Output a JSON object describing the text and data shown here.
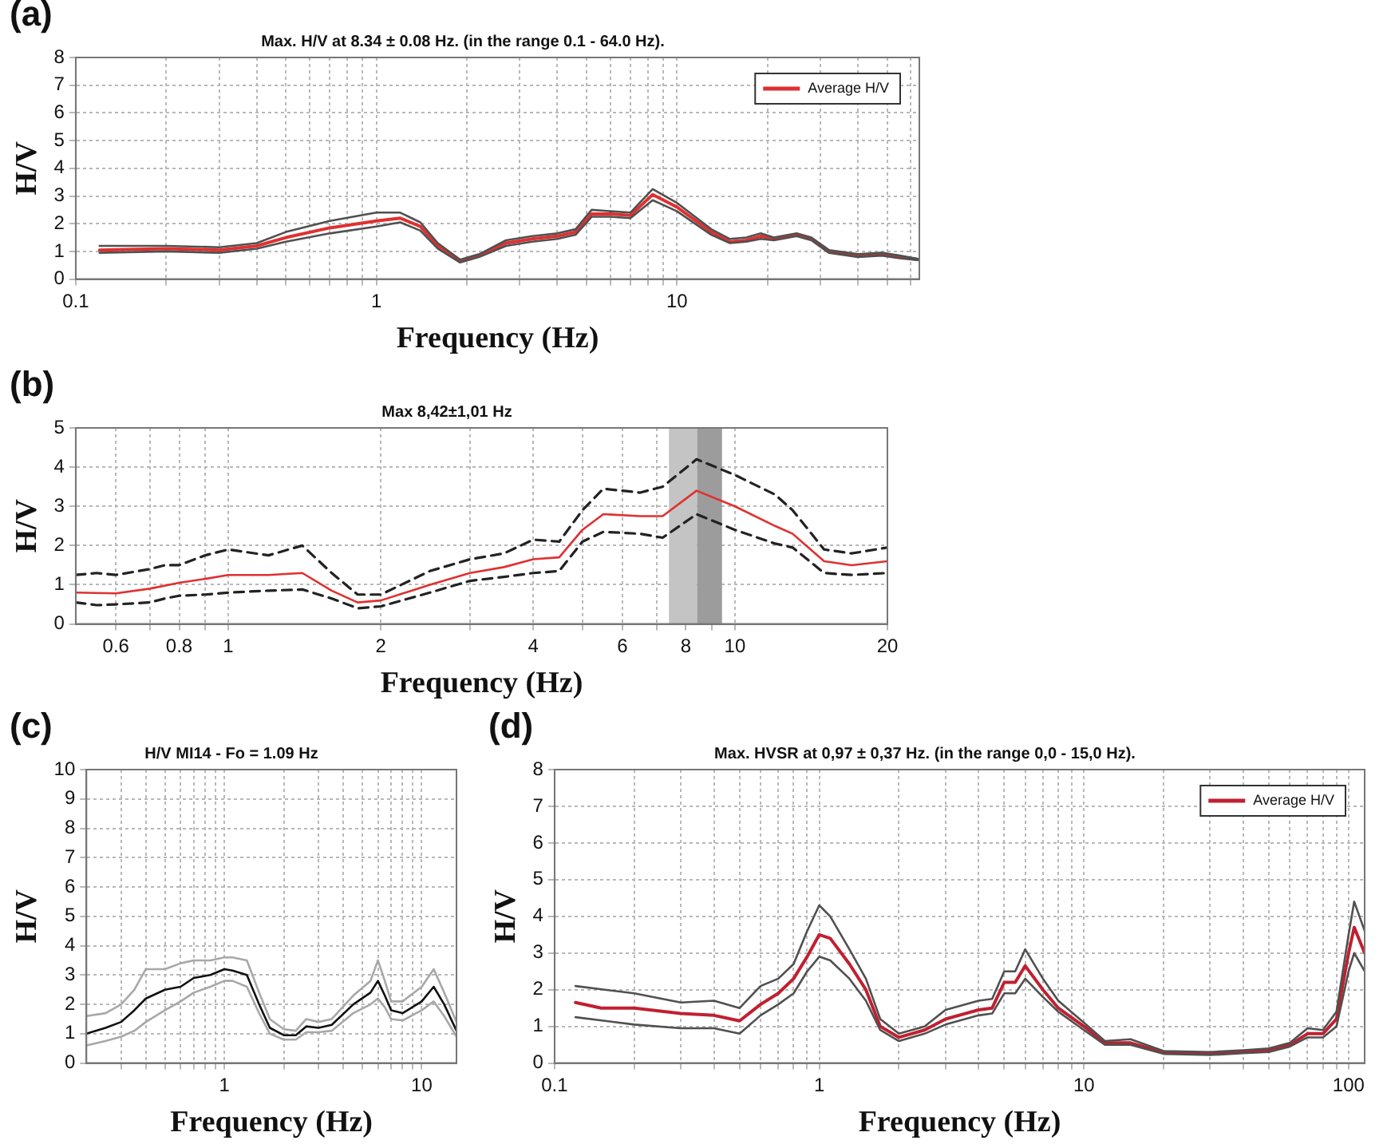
{
  "chart_data": [
    {
      "type": "line",
      "title": "Max. H/V at 8.34 ± 0.08 Hz. (in the range 0.1 - 64.0 Hz).",
      "xlabel": "Frequency (Hz)",
      "ylabel": "H/V",
      "annotations": [
        "(a)"
      ],
      "log": "x",
      "grid": true,
      "legend": "top right",
      "xlim": [
        0.1,
        64
      ],
      "ylim": [
        0,
        8
      ],
      "yticks": [
        0,
        1,
        2,
        3,
        4,
        5,
        6,
        7,
        8
      ],
      "xticks": [
        0.1,
        {
          "value": 0.2,
          "label": null
        },
        {
          "value": 0.3,
          "label": null
        },
        {
          "value": 0.4,
          "label": null
        },
        {
          "value": 0.5,
          "label": null
        },
        {
          "value": 0.6,
          "label": null
        },
        {
          "value": 0.7,
          "label": null
        },
        {
          "value": 0.8,
          "label": null
        },
        {
          "value": 0.9,
          "label": null
        },
        1,
        {
          "value": 2,
          "label": null
        },
        {
          "value": 3,
          "label": null
        },
        {
          "value": 4,
          "label": null
        },
        {
          "value": 5,
          "label": null
        },
        {
          "value": 6,
          "label": null
        },
        {
          "value": 7,
          "label": null
        },
        {
          "value": 8,
          "label": null
        },
        {
          "value": 9,
          "label": null
        },
        10,
        {
          "value": 20,
          "label": null
        },
        {
          "value": 30,
          "label": null
        },
        {
          "value": 40,
          "label": null
        },
        {
          "value": 50,
          "label": null
        },
        {
          "value": 60,
          "label": null
        }
      ],
      "series": [
        {
          "color": "#505050",
          "x": [
            0.12,
            0.2,
            0.3,
            0.4,
            0.5,
            0.7,
            1.0,
            1.2,
            1.4,
            1.6,
            1.9,
            2.2,
            2.7,
            3.3,
            4.0,
            4.6,
            5.2,
            6.0,
            7.0,
            8.3,
            10,
            13,
            15,
            17,
            19,
            21,
            25,
            28,
            32,
            40,
            48,
            55,
            64
          ],
          "values": [
            1.2,
            1.2,
            1.15,
            1.3,
            1.7,
            2.1,
            2.4,
            2.4,
            2.05,
            1.3,
            0.7,
            0.9,
            1.4,
            1.55,
            1.65,
            1.8,
            2.5,
            2.45,
            2.4,
            3.25,
            2.75,
            1.8,
            1.45,
            1.5,
            1.65,
            1.5,
            1.65,
            1.5,
            1.05,
            0.9,
            0.95,
            0.85,
            0.72
          ]
        },
        {
          "color": "#505050",
          "x": [
            0.12,
            0.2,
            0.3,
            0.4,
            0.5,
            0.7,
            1.0,
            1.2,
            1.4,
            1.6,
            1.9,
            2.2,
            2.7,
            3.3,
            4.0,
            4.6,
            5.2,
            6.0,
            7.0,
            8.3,
            10,
            13,
            15,
            17,
            19,
            21,
            25,
            28,
            32,
            40,
            48,
            55,
            64
          ],
          "values": [
            0.95,
            1.0,
            0.95,
            1.1,
            1.35,
            1.65,
            1.9,
            2.05,
            1.75,
            1.1,
            0.6,
            0.8,
            1.2,
            1.35,
            1.45,
            1.6,
            2.25,
            2.25,
            2.2,
            2.85,
            2.45,
            1.6,
            1.3,
            1.35,
            1.45,
            1.4,
            1.55,
            1.4,
            0.95,
            0.8,
            0.85,
            0.75,
            0.68
          ]
        },
        {
          "name": "Average H/V",
          "color": "#e03030",
          "x": [
            0.12,
            0.2,
            0.3,
            0.4,
            0.5,
            0.7,
            1.0,
            1.2,
            1.4,
            1.6,
            1.9,
            2.2,
            2.7,
            3.3,
            4.0,
            4.6,
            5.2,
            6.0,
            7.0,
            8.3,
            10,
            13,
            15,
            17,
            19,
            21,
            25,
            28,
            32,
            40,
            48,
            55,
            64
          ],
          "values": [
            1.05,
            1.1,
            1.05,
            1.2,
            1.5,
            1.85,
            2.1,
            2.2,
            1.9,
            1.2,
            0.65,
            0.85,
            1.3,
            1.45,
            1.55,
            1.7,
            2.35,
            2.35,
            2.3,
            3.05,
            2.6,
            1.7,
            1.35,
            1.4,
            1.55,
            1.45,
            1.6,
            1.45,
            1.0,
            0.85,
            0.9,
            0.8,
            0.7
          ]
        }
      ]
    },
    {
      "type": "line",
      "title": "Max 8,42±1,01 Hz",
      "xlabel": "Frequency (Hz)",
      "ylabel": "H/V",
      "annotations": [
        "(b)"
      ],
      "log": "x",
      "grid": true,
      "xlim": [
        0.5,
        20
      ],
      "ylim": [
        0,
        5
      ],
      "yticks": [
        0,
        1,
        2,
        3,
        4,
        5
      ],
      "xticks": [
        0.6,
        {
          "value": 0.7,
          "label": null
        },
        0.8,
        {
          "value": 0.9,
          "label": null
        },
        1,
        2,
        {
          "value": 3,
          "label": null
        },
        4,
        {
          "value": 5,
          "label": null
        },
        6,
        {
          "value": 7,
          "label": null
        },
        8,
        {
          "value": 9,
          "label": null
        },
        10,
        20
      ],
      "bands": [
        {
          "axis": "x",
          "from": 7.41,
          "to": 8.42,
          "color": "#c4c4c4"
        },
        {
          "axis": "x",
          "from": 8.42,
          "to": 9.43,
          "color": "#9c9c9c"
        }
      ],
      "series": [
        {
          "color": "#222222",
          "line_style": "dashed",
          "x": [
            0.5,
            0.55,
            0.6,
            0.7,
            0.75,
            0.8,
            0.9,
            1.0,
            1.2,
            1.4,
            1.6,
            1.8,
            2.0,
            2.5,
            3,
            3.5,
            4,
            4.5,
            5,
            5.5,
            6.5,
            7.2,
            8.4,
            10,
            12,
            13,
            15,
            17,
            20
          ],
          "values": [
            1.25,
            1.3,
            1.25,
            1.4,
            1.5,
            1.5,
            1.75,
            1.9,
            1.75,
            2.0,
            1.3,
            0.75,
            0.75,
            1.35,
            1.65,
            1.8,
            2.15,
            2.1,
            2.9,
            3.45,
            3.35,
            3.5,
            4.2,
            3.8,
            3.3,
            2.9,
            1.9,
            1.8,
            1.95
          ]
        },
        {
          "color": "#222222",
          "line_style": "dashed",
          "x": [
            0.5,
            0.55,
            0.6,
            0.7,
            0.75,
            0.8,
            0.9,
            1.0,
            1.2,
            1.4,
            1.6,
            1.8,
            2.0,
            2.5,
            3,
            3.5,
            4,
            4.5,
            5,
            5.5,
            6.5,
            7.2,
            8.4,
            10,
            12,
            13,
            15,
            17,
            20
          ],
          "values": [
            0.55,
            0.48,
            0.5,
            0.55,
            0.65,
            0.72,
            0.75,
            0.8,
            0.85,
            0.88,
            0.65,
            0.4,
            0.45,
            0.8,
            1.1,
            1.2,
            1.3,
            1.35,
            2.1,
            2.35,
            2.3,
            2.2,
            2.8,
            2.4,
            2.05,
            1.95,
            1.3,
            1.25,
            1.3
          ]
        },
        {
          "color": "#e03030",
          "x": [
            0.5,
            0.6,
            0.7,
            0.8,
            0.9,
            1.0,
            1.2,
            1.4,
            1.6,
            1.8,
            2.0,
            2.5,
            3,
            3.5,
            4,
            4.5,
            5,
            5.5,
            6.5,
            7.2,
            8.4,
            10,
            12,
            13,
            15,
            17,
            20
          ],
          "values": [
            0.8,
            0.78,
            0.9,
            1.05,
            1.15,
            1.25,
            1.25,
            1.3,
            0.85,
            0.55,
            0.6,
            1.0,
            1.3,
            1.45,
            1.65,
            1.7,
            2.4,
            2.8,
            2.75,
            2.75,
            3.4,
            3.0,
            2.5,
            2.3,
            1.6,
            1.5,
            1.6
          ]
        }
      ]
    },
    {
      "type": "line",
      "title": "H/V MI14 - Fo = 1.09 Hz",
      "xlabel": "Frequency (Hz)",
      "ylabel": "H/V",
      "annotations": [
        "(c)"
      ],
      "log": "x",
      "grid": true,
      "xlim": [
        0.2,
        15
      ],
      "ylim": [
        0,
        10
      ],
      "yticks": [
        0,
        1,
        2,
        3,
        4,
        5,
        6,
        7,
        8,
        9,
        10
      ],
      "xticks": [
        {
          "value": 0.3,
          "label": null
        },
        {
          "value": 0.4,
          "label": null
        },
        {
          "value": 0.5,
          "label": null
        },
        {
          "value": 0.6,
          "label": null
        },
        {
          "value": 0.7,
          "label": null
        },
        {
          "value": 0.8,
          "label": null
        },
        {
          "value": 0.9,
          "label": null
        },
        1,
        {
          "value": 2,
          "label": null
        },
        {
          "value": 3,
          "label": null
        },
        {
          "value": 4,
          "label": null
        },
        {
          "value": 5,
          "label": null
        },
        {
          "value": 6,
          "label": null
        },
        {
          "value": 7,
          "label": null
        },
        {
          "value": 8,
          "label": null
        },
        {
          "value": 9,
          "label": null
        },
        10
      ],
      "series": [
        {
          "color": "#a8a8a8",
          "x": [
            0.2,
            0.25,
            0.3,
            0.35,
            0.4,
            0.5,
            0.6,
            0.7,
            0.85,
            1.0,
            1.1,
            1.3,
            1.5,
            1.7,
            2.0,
            2.3,
            2.6,
            3,
            3.5,
            4.5,
            5.5,
            6.0,
            6.5,
            7,
            8,
            10,
            11.5,
            13,
            15
          ],
          "values": [
            1.6,
            1.7,
            2.0,
            2.5,
            3.2,
            3.2,
            3.4,
            3.5,
            3.5,
            3.6,
            3.6,
            3.5,
            2.4,
            1.5,
            1.15,
            1.1,
            1.5,
            1.4,
            1.5,
            2.3,
            2.8,
            3.5,
            2.8,
            2.1,
            2.1,
            2.6,
            3.2,
            2.4,
            1.4
          ]
        },
        {
          "color": "#a8a8a8",
          "x": [
            0.2,
            0.25,
            0.3,
            0.35,
            0.4,
            0.5,
            0.6,
            0.7,
            0.85,
            1.0,
            1.1,
            1.3,
            1.5,
            1.7,
            2.0,
            2.3,
            2.6,
            3,
            3.5,
            4.5,
            5.5,
            6.0,
            6.5,
            7,
            8,
            10,
            11.5,
            13,
            15
          ],
          "values": [
            0.6,
            0.75,
            0.9,
            1.1,
            1.4,
            1.8,
            2.1,
            2.4,
            2.6,
            2.8,
            2.8,
            2.6,
            1.7,
            1.0,
            0.8,
            0.8,
            1.05,
            1.05,
            1.1,
            1.7,
            2.0,
            2.2,
            1.9,
            1.5,
            1.45,
            1.8,
            2.1,
            1.6,
            0.9
          ]
        },
        {
          "color": "#111111",
          "x": [
            0.2,
            0.25,
            0.3,
            0.35,
            0.4,
            0.5,
            0.6,
            0.7,
            0.85,
            1.0,
            1.1,
            1.3,
            1.5,
            1.7,
            2.0,
            2.3,
            2.6,
            3,
            3.5,
            4.5,
            5.5,
            6.0,
            6.5,
            7,
            8,
            10,
            11.5,
            13,
            15
          ],
          "values": [
            1.0,
            1.2,
            1.4,
            1.8,
            2.2,
            2.5,
            2.6,
            2.9,
            3.0,
            3.2,
            3.15,
            3.0,
            2.0,
            1.2,
            0.95,
            0.95,
            1.25,
            1.2,
            1.3,
            2.0,
            2.4,
            2.8,
            2.3,
            1.8,
            1.7,
            2.1,
            2.6,
            2.0,
            1.1
          ]
        }
      ]
    },
    {
      "type": "line",
      "title": "Max. HVSR at 0,97 ± 0,37 Hz. (in the range 0,0 - 15,0 Hz).",
      "xlabel": "Frequency (Hz)",
      "ylabel": "H/V",
      "annotations": [
        "(d)"
      ],
      "log": "x",
      "grid": true,
      "legend": "top right",
      "xlim": [
        0.1,
        115
      ],
      "ylim": [
        0,
        8
      ],
      "yticks": [
        0,
        1,
        2,
        3,
        4,
        5,
        6,
        7,
        8
      ],
      "xticks": [
        0.1,
        {
          "value": 0.2,
          "label": null
        },
        {
          "value": 0.3,
          "label": null
        },
        {
          "value": 0.4,
          "label": null
        },
        {
          "value": 0.5,
          "label": null
        },
        {
          "value": 0.6,
          "label": null
        },
        {
          "value": 0.7,
          "label": null
        },
        {
          "value": 0.8,
          "label": null
        },
        {
          "value": 0.9,
          "label": null
        },
        1,
        {
          "value": 2,
          "label": null
        },
        {
          "value": 3,
          "label": null
        },
        {
          "value": 4,
          "label": null
        },
        {
          "value": 5,
          "label": null
        },
        {
          "value": 6,
          "label": null
        },
        {
          "value": 7,
          "label": null
        },
        {
          "value": 8,
          "label": null
        },
        {
          "value": 9,
          "label": null
        },
        10,
        {
          "value": 20,
          "label": null
        },
        {
          "value": 30,
          "label": null
        },
        {
          "value": 40,
          "label": null
        },
        {
          "value": 50,
          "label": null
        },
        {
          "value": 60,
          "label": null
        },
        {
          "value": 70,
          "label": null
        },
        {
          "value": 80,
          "label": null
        },
        {
          "value": 90,
          "label": null
        },
        100
      ],
      "series": [
        {
          "color": "#505050",
          "x": [
            0.12,
            0.2,
            0.3,
            0.4,
            0.5,
            0.6,
            0.7,
            0.8,
            0.9,
            1.0,
            1.1,
            1.3,
            1.5,
            1.7,
            2,
            2.5,
            3,
            4,
            4.5,
            5,
            5.5,
            6,
            7,
            8,
            10,
            12,
            15,
            20,
            30,
            40,
            50,
            60,
            70,
            80,
            90,
            100,
            105,
            115
          ],
          "values": [
            2.1,
            1.9,
            1.65,
            1.7,
            1.5,
            2.1,
            2.3,
            2.7,
            3.6,
            4.3,
            4.0,
            3.1,
            2.3,
            1.2,
            0.8,
            1.0,
            1.45,
            1.7,
            1.75,
            2.5,
            2.5,
            3.1,
            2.3,
            1.7,
            1.1,
            0.6,
            0.65,
            0.33,
            0.3,
            0.35,
            0.4,
            0.55,
            0.95,
            0.9,
            1.4,
            3.5,
            4.4,
            3.6
          ]
        },
        {
          "color": "#505050",
          "x": [
            0.12,
            0.2,
            0.3,
            0.4,
            0.5,
            0.6,
            0.7,
            0.8,
            0.9,
            1.0,
            1.1,
            1.3,
            1.5,
            1.7,
            2,
            2.5,
            3,
            4,
            4.5,
            5,
            5.5,
            6,
            7,
            8,
            10,
            12,
            15,
            20,
            30,
            40,
            50,
            60,
            70,
            80,
            90,
            100,
            105,
            115
          ],
          "values": [
            1.25,
            1.05,
            0.95,
            0.95,
            0.8,
            1.3,
            1.6,
            1.9,
            2.5,
            2.9,
            2.8,
            2.3,
            1.7,
            0.9,
            0.6,
            0.8,
            1.05,
            1.3,
            1.35,
            1.9,
            1.9,
            2.3,
            1.8,
            1.4,
            0.9,
            0.5,
            0.5,
            0.25,
            0.22,
            0.27,
            0.3,
            0.45,
            0.7,
            0.7,
            1.0,
            2.5,
            3.0,
            2.5
          ]
        },
        {
          "name": "Average H/V",
          "color": "#c02030",
          "x": [
            0.12,
            0.15,
            0.2,
            0.3,
            0.4,
            0.5,
            0.6,
            0.7,
            0.8,
            0.9,
            1.0,
            1.1,
            1.3,
            1.5,
            1.7,
            2,
            2.5,
            3,
            4,
            4.5,
            5,
            5.5,
            6,
            7,
            8,
            10,
            12,
            15,
            20,
            30,
            40,
            50,
            60,
            70,
            80,
            90,
            100,
            105,
            115
          ],
          "values": [
            1.65,
            1.5,
            1.5,
            1.35,
            1.3,
            1.15,
            1.6,
            1.9,
            2.3,
            2.9,
            3.5,
            3.4,
            2.7,
            2.0,
            1.0,
            0.7,
            0.9,
            1.2,
            1.45,
            1.5,
            2.2,
            2.2,
            2.65,
            2.0,
            1.5,
            1.0,
            0.55,
            0.55,
            0.3,
            0.25,
            0.3,
            0.35,
            0.5,
            0.8,
            0.8,
            1.2,
            3.0,
            3.7,
            3.0
          ]
        }
      ]
    }
  ]
}
